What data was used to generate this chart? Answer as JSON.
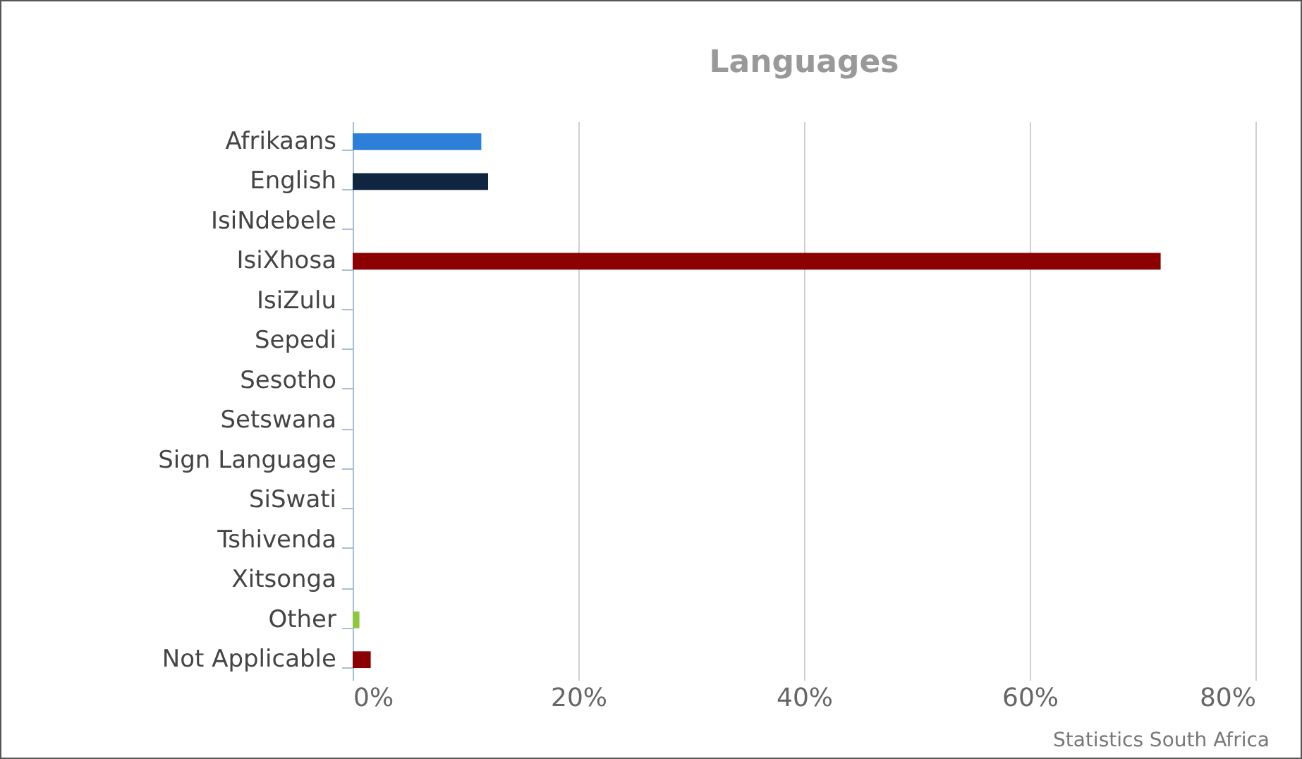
{
  "chart_data": {
    "type": "bar",
    "orientation": "horizontal",
    "title": "Languages",
    "categories": [
      "Afrikaans",
      "English",
      "IsiNdebele",
      "IsiXhosa",
      "IsiZulu",
      "Sepedi",
      "Sesotho",
      "Setswana",
      "Sign Language",
      "SiSwati",
      "Tshivenda",
      "Xitsonga",
      "Other",
      "Not Applicable"
    ],
    "values": [
      11.4,
      12.0,
      0,
      71.6,
      0,
      0,
      0,
      0,
      0,
      0,
      0,
      0,
      0.6,
      1.6
    ],
    "colors": [
      "#2e7fd8",
      "#0f2540",
      "#8b0000",
      "#8b0000",
      "#8b0000",
      "#8b0000",
      "#8b0000",
      "#8b0000",
      "#8b0000",
      "#8b0000",
      "#8b0000",
      "#8b0000",
      "#8dc63f",
      "#8b0000"
    ],
    "xlim": [
      0,
      80
    ],
    "xticks": [
      {
        "value": 0,
        "label": "0%"
      },
      {
        "value": 20,
        "label": "20%"
      },
      {
        "value": 40,
        "label": "40%"
      },
      {
        "value": 60,
        "label": "60%"
      },
      {
        "value": 80,
        "label": "80%"
      }
    ],
    "grid": "x",
    "legend": false,
    "annotations": [
      "Statistics South Africa"
    ]
  }
}
